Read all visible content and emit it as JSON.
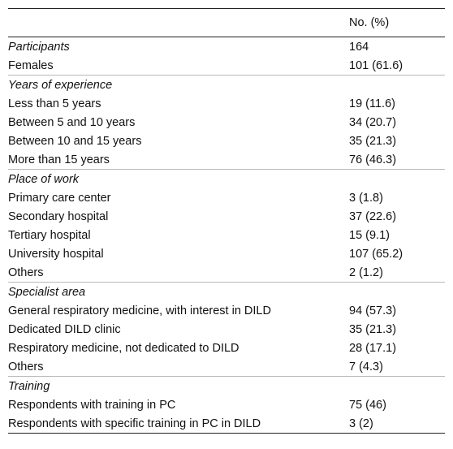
{
  "table": {
    "header": {
      "label": "",
      "value": "No. (%)"
    },
    "sections": [
      {
        "title": "Participants",
        "title_value": "164",
        "rows": [
          {
            "label": "Females",
            "value": "101 (61.6)"
          }
        ]
      },
      {
        "title": "Years of experience",
        "title_value": "",
        "rows": [
          {
            "label": "Less than 5 years",
            "value": "19 (11.6)"
          },
          {
            "label": "Between 5 and 10 years",
            "value": "34 (20.7)"
          },
          {
            "label": "Between 10 and 15 years",
            "value": "35 (21.3)"
          },
          {
            "label": "More than 15 years",
            "value": "76 (46.3)"
          }
        ]
      },
      {
        "title": "Place of work",
        "title_value": "",
        "rows": [
          {
            "label": "Primary care center",
            "value": "3 (1.8)"
          },
          {
            "label": "Secondary hospital",
            "value": "37 (22.6)"
          },
          {
            "label": "Tertiary hospital",
            "value": "15 (9.1)"
          },
          {
            "label": "University hospital",
            "value": "107 (65.2)"
          },
          {
            "label": "Others",
            "value": "2 (1.2)"
          }
        ]
      },
      {
        "title": "Specialist area",
        "title_value": "",
        "rows": [
          {
            "label": "General respiratory medicine, with interest in DILD",
            "value": "94 (57.3)"
          },
          {
            "label": "Dedicated DILD clinic",
            "value": "35 (21.3)"
          },
          {
            "label": "Respiratory medicine, not dedicated to DILD",
            "value": "28 (17.1)"
          },
          {
            "label": "Others",
            "value": "7 (4.3)"
          }
        ]
      },
      {
        "title": "Training",
        "title_value": "",
        "rows": [
          {
            "label": "Respondents with training in PC",
            "value": "75 (46)"
          },
          {
            "label": "Respondents with specific training in PC in DILD",
            "value": "3 (2)"
          }
        ]
      }
    ]
  }
}
